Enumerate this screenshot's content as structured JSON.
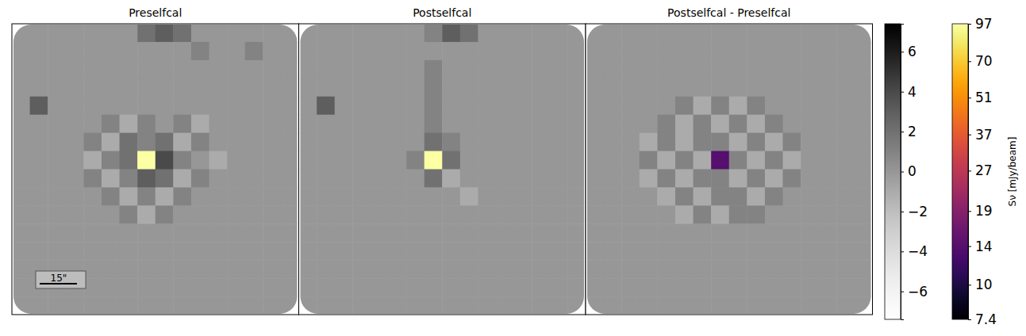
{
  "chart_data": {
    "type": "heatmap",
    "log": true,
    "scalebar_label": "15\"",
    "panels": [
      {
        "title": "Preselfcal",
        "cells": [
          [
            0,
            0,
            0,
            0,
            0,
            0,
            0,
            2,
            3,
            2,
            0,
            0,
            0,
            0,
            0,
            0
          ],
          [
            0,
            0,
            0,
            0,
            0,
            0,
            0,
            0,
            0,
            0,
            1,
            0,
            0,
            1,
            0,
            0
          ],
          [
            0,
            0,
            0,
            0,
            0,
            0,
            0,
            0,
            0,
            0,
            0,
            0,
            0,
            0,
            0,
            0
          ],
          [
            0,
            0,
            0,
            0,
            0,
            0,
            0,
            0,
            0,
            0,
            0,
            0,
            0,
            0,
            0,
            0
          ],
          [
            0,
            3,
            0,
            0,
            0,
            0,
            0,
            0,
            0,
            0,
            0,
            0,
            0,
            0,
            0,
            0
          ],
          [
            0,
            0,
            0,
            0,
            0,
            1,
            -1,
            1,
            0,
            1,
            -1,
            0,
            0,
            0,
            0,
            0
          ],
          [
            0,
            0,
            0,
            0,
            1,
            -1,
            2,
            1,
            2,
            -1,
            1,
            0,
            0,
            0,
            0,
            0
          ],
          [
            0,
            0,
            0,
            0,
            -1,
            1,
            2,
            97,
            4,
            1,
            0,
            -1,
            0,
            0,
            0,
            0
          ],
          [
            0,
            0,
            0,
            0,
            1,
            -1,
            1,
            3,
            2,
            -1,
            1,
            0,
            0,
            0,
            0,
            0
          ],
          [
            0,
            0,
            0,
            0,
            0,
            1,
            -1,
            1,
            -1,
            1,
            0,
            0,
            0,
            0,
            0,
            0
          ],
          [
            0,
            0,
            0,
            0,
            0,
            0,
            1,
            -1,
            1,
            0,
            0,
            0,
            0,
            0,
            0,
            0
          ],
          [
            0,
            0,
            0,
            0,
            0,
            0,
            0,
            0,
            0,
            0,
            0,
            0,
            0,
            0,
            0,
            0
          ],
          [
            0,
            0,
            0,
            0,
            0,
            0,
            0,
            0,
            0,
            0,
            0,
            0,
            0,
            0,
            0,
            0
          ],
          [
            0,
            0,
            0,
            0,
            0,
            0,
            0,
            0,
            0,
            0,
            0,
            0,
            0,
            0,
            0,
            0
          ],
          [
            0,
            0,
            0,
            0,
            0,
            0,
            0,
            0,
            0,
            0,
            0,
            0,
            0,
            0,
            0,
            0
          ],
          [
            0,
            0,
            0,
            0,
            0,
            0,
            0,
            0,
            0,
            0,
            0,
            0,
            0,
            0,
            0,
            0
          ]
        ]
      },
      {
        "title": "Postselfcal",
        "cells": [
          [
            0,
            0,
            0,
            0,
            0,
            0,
            0,
            1,
            3,
            2,
            0,
            0,
            0,
            0,
            0,
            0
          ],
          [
            0,
            0,
            0,
            0,
            0,
            0,
            0,
            0,
            0,
            0,
            0,
            0,
            0,
            0,
            0,
            0
          ],
          [
            0,
            0,
            0,
            0,
            0,
            0,
            0,
            1,
            0,
            0,
            0,
            0,
            0,
            0,
            0,
            0
          ],
          [
            0,
            0,
            0,
            0,
            0,
            0,
            0,
            1,
            0,
            0,
            0,
            0,
            0,
            0,
            0,
            0
          ],
          [
            0,
            3,
            0,
            0,
            0,
            0,
            0,
            1,
            0,
            0,
            0,
            0,
            0,
            0,
            0,
            0
          ],
          [
            0,
            0,
            0,
            0,
            0,
            0,
            0,
            1,
            0,
            0,
            0,
            0,
            0,
            0,
            0,
            0
          ],
          [
            0,
            0,
            0,
            0,
            0,
            0,
            0,
            2,
            1,
            0,
            0,
            0,
            0,
            0,
            0,
            0
          ],
          [
            0,
            0,
            0,
            0,
            0,
            0,
            1,
            97,
            2,
            0,
            0,
            0,
            0,
            0,
            0,
            0
          ],
          [
            0,
            0,
            0,
            0,
            0,
            0,
            0,
            2,
            -1,
            0,
            0,
            0,
            0,
            0,
            0,
            0
          ],
          [
            0,
            0,
            0,
            0,
            0,
            0,
            0,
            0,
            0,
            -1,
            0,
            0,
            0,
            0,
            0,
            0
          ],
          [
            0,
            0,
            0,
            0,
            0,
            0,
            0,
            0,
            0,
            0,
            0,
            0,
            0,
            0,
            0,
            0
          ],
          [
            0,
            0,
            0,
            0,
            0,
            0,
            0,
            0,
            0,
            0,
            0,
            0,
            0,
            0,
            0,
            0
          ],
          [
            0,
            0,
            0,
            0,
            0,
            0,
            0,
            0,
            0,
            0,
            0,
            0,
            0,
            0,
            0,
            0
          ],
          [
            0,
            0,
            0,
            0,
            0,
            0,
            0,
            0,
            0,
            0,
            0,
            0,
            0,
            0,
            0,
            0
          ],
          [
            0,
            0,
            0,
            0,
            0,
            0,
            0,
            0,
            0,
            0,
            0,
            0,
            0,
            0,
            0,
            0
          ],
          [
            0,
            0,
            0,
            0,
            0,
            0,
            0,
            0,
            0,
            0,
            0,
            0,
            0,
            0,
            0,
            0
          ]
        ]
      },
      {
        "title": "Postselfcal - Preselfcal",
        "cells": [
          [
            0,
            0,
            0,
            0,
            0,
            0,
            0,
            0,
            0,
            0,
            0,
            0,
            0,
            0,
            0,
            0
          ],
          [
            0,
            0,
            0,
            0,
            0,
            0,
            0,
            0,
            0,
            0,
            0,
            0,
            0,
            0,
            0,
            0
          ],
          [
            0,
            0,
            0,
            0,
            0,
            0,
            0,
            0,
            0,
            0,
            0,
            0,
            0,
            0,
            0,
            0
          ],
          [
            0,
            0,
            0,
            0,
            0,
            0,
            0,
            0,
            0,
            0,
            0,
            0,
            0,
            0,
            0,
            0
          ],
          [
            0,
            0,
            0,
            0,
            0,
            1,
            -1,
            1,
            -1,
            1,
            0,
            0,
            0,
            0,
            0,
            0
          ],
          [
            0,
            0,
            0,
            0,
            1,
            -1,
            1,
            -1,
            1,
            -1,
            1,
            0,
            0,
            0,
            0,
            0
          ],
          [
            0,
            0,
            0,
            -1,
            1,
            -1,
            1,
            1,
            -1,
            1,
            -1,
            1,
            0,
            0,
            0,
            0
          ],
          [
            0,
            0,
            0,
            1,
            -1,
            1,
            -1,
            14,
            1,
            -1,
            1,
            -1,
            0,
            0,
            0,
            0
          ],
          [
            0,
            0,
            0,
            -1,
            1,
            -1,
            1,
            1,
            -1,
            1,
            -1,
            1,
            0,
            0,
            0,
            0
          ],
          [
            0,
            0,
            0,
            0,
            -1,
            1,
            -1,
            1,
            1,
            -1,
            1,
            0,
            0,
            0,
            0,
            0
          ],
          [
            0,
            0,
            0,
            0,
            0,
            -1,
            1,
            -1,
            1,
            1,
            0,
            0,
            0,
            0,
            0,
            0
          ],
          [
            0,
            0,
            0,
            0,
            0,
            0,
            0,
            0,
            0,
            0,
            0,
            0,
            0,
            0,
            0,
            0
          ],
          [
            0,
            0,
            0,
            0,
            0,
            0,
            0,
            0,
            0,
            0,
            0,
            0,
            0,
            0,
            0,
            0
          ],
          [
            0,
            0,
            0,
            0,
            0,
            0,
            0,
            0,
            0,
            0,
            0,
            0,
            0,
            0,
            0,
            0
          ],
          [
            0,
            0,
            0,
            0,
            0,
            0,
            0,
            0,
            0,
            0,
            0,
            0,
            0,
            0,
            0,
            0
          ],
          [
            0,
            0,
            0,
            0,
            0,
            0,
            0,
            0,
            0,
            0,
            0,
            0,
            0,
            0,
            0,
            0
          ]
        ]
      }
    ],
    "colorbar": {
      "range": [
        -7.4,
        7.4
      ],
      "ticks": [
        {
          "value": -6,
          "label": "−6"
        },
        {
          "value": -4,
          "label": "−4"
        },
        {
          "value": -2,
          "label": "−2"
        },
        0,
        2,
        4,
        6
      ]
    },
    "colorbar2": {
      "label": "Sν [mJy/beam]",
      "range": [
        7.4,
        97
      ],
      "ticks": [
        7.4,
        10,
        14,
        19,
        27,
        37,
        51,
        70,
        97
      ]
    }
  }
}
